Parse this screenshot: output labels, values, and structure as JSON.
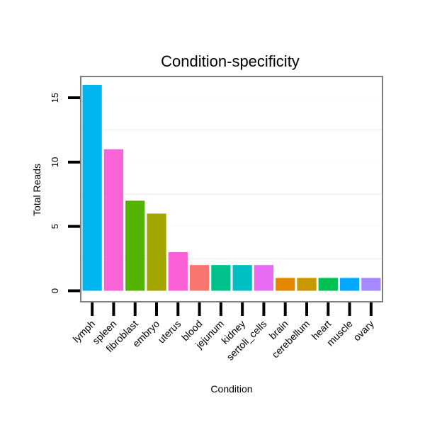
{
  "chart_data": {
    "type": "bar",
    "title": "Condition-specificity",
    "xlabel": "Condition",
    "ylabel": "Total Reads",
    "ylim": [
      -0.8,
      16.6
    ],
    "yticks": [
      0,
      5,
      10,
      15
    ],
    "grid": true,
    "legend": "none",
    "categories": [
      "lymph",
      "spleen",
      "fibroblast",
      "embryo",
      "uterus",
      "blood",
      "jejunum",
      "kidney",
      "sertoli_cells",
      "brain",
      "cerebellum",
      "heart",
      "muscle",
      "ovary"
    ],
    "values": [
      16,
      11,
      7,
      6,
      3,
      2,
      2,
      2,
      2,
      1,
      1,
      1,
      1,
      1
    ],
    "colors": [
      "#00B4EF",
      "#F864D8",
      "#53B400",
      "#A3A500",
      "#FB61D7",
      "#F8766D",
      "#00C08B",
      "#00BFC4",
      "#E76BF3",
      "#E58700",
      "#C99800",
      "#00C053",
      "#00A9FF",
      "#A58AFF"
    ]
  }
}
